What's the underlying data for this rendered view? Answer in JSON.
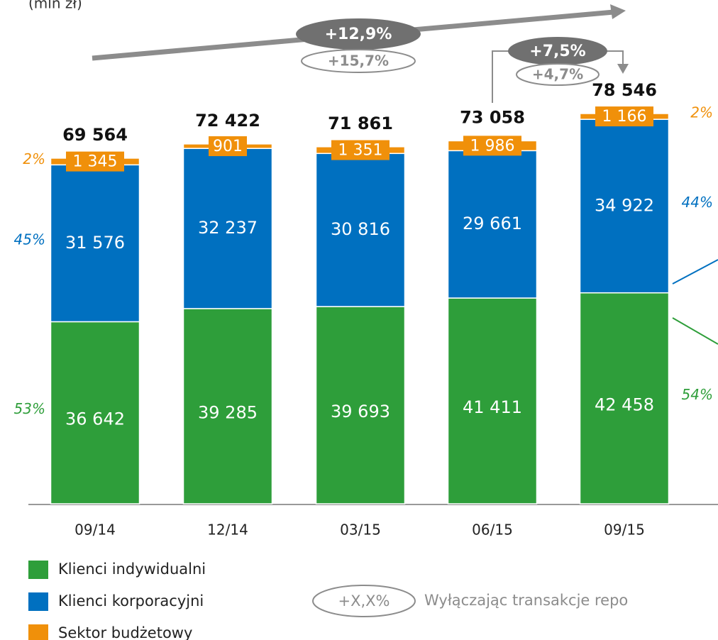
{
  "chart_data": {
    "type": "stacked_bar",
    "unit": "(mln zł)",
    "categories": [
      "09/14",
      "12/14",
      "03/15",
      "06/15",
      "09/15"
    ],
    "series": [
      {
        "name": "Klienci indywidualni",
        "color": "#2e9e3a",
        "values": [
          36642,
          39285,
          39693,
          41411,
          42458
        ],
        "value_labels": [
          "36 642",
          "39 285",
          "39 693",
          "41 411",
          "42 458"
        ]
      },
      {
        "name": "Klienci korporacyjni",
        "color": "#0070c0",
        "values": [
          31576,
          32237,
          30816,
          29661,
          34922
        ],
        "value_labels": [
          "31 576",
          "32 237",
          "30 816",
          "29 661",
          "34 922"
        ]
      },
      {
        "name": "Sektor budżetowy",
        "color": "#f0900a",
        "values": [
          1345,
          901,
          1351,
          1986,
          1166
        ],
        "value_labels": [
          "1 345",
          "901",
          "1 351",
          "1 986",
          "1 166"
        ]
      }
    ],
    "totals": [
      69564,
      72422,
      71861,
      73058,
      78546
    ],
    "total_labels": [
      "69 564",
      "72 422",
      "71 861",
      "73 058",
      "78 546"
    ],
    "first_shares": [
      "53%",
      "45%",
      "2%"
    ],
    "last_shares": [
      "54%",
      "44%",
      "2%"
    ],
    "growth": [
      {
        "value": "+12,9%",
        "excl_repo": "+15,7%"
      },
      {
        "value": "+7,5%",
        "excl_repo": "+4,7%"
      }
    ],
    "legend_note": {
      "symbol": "+X,X%",
      "text": "Wyłączając transakcje repo"
    }
  }
}
